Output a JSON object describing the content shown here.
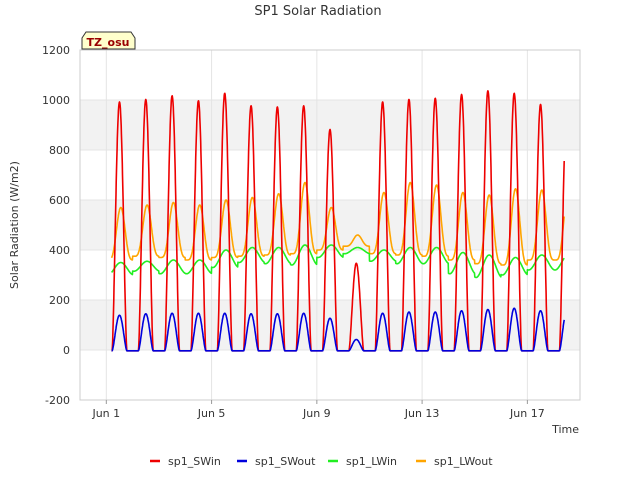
{
  "chart_data": {
    "type": "line",
    "title": "SP1 Solar Radiation",
    "xlabel": "Time",
    "ylabel": "Solar Radiation (W/m2)",
    "badge": "TZ_osu",
    "ylim": [
      -200,
      1200
    ],
    "xlim": [
      "2018-05-31",
      "2018-06-19"
    ],
    "yticks": [
      -200,
      0,
      200,
      400,
      600,
      800,
      1000,
      1200
    ],
    "xticks": [
      {
        "date": "2018-06-01",
        "label": "Jun 1"
      },
      {
        "date": "2018-06-05",
        "label": "Jun 5"
      },
      {
        "date": "2018-06-09",
        "label": "Jun 9"
      },
      {
        "date": "2018-06-13",
        "label": "Jun 13"
      },
      {
        "date": "2018-06-17",
        "label": "Jun 17"
      }
    ],
    "grid": true,
    "band_shading": true,
    "legend_position": "bottom",
    "daily": [
      {
        "date": "2018-06-01",
        "swin_peak": 995,
        "swout_peak": 142,
        "lwin_night": 300,
        "lwin_day": 350,
        "lwout_night": 360,
        "lwout_day": 570
      },
      {
        "date": "2018-06-02",
        "swin_peak": 1005,
        "swout_peak": 148,
        "lwin_night": 315,
        "lwin_day": 355,
        "lwout_night": 375,
        "lwout_day": 580
      },
      {
        "date": "2018-06-03",
        "swin_peak": 1020,
        "swout_peak": 150,
        "lwin_night": 305,
        "lwin_day": 360,
        "lwout_night": 370,
        "lwout_day": 590
      },
      {
        "date": "2018-06-04",
        "swin_peak": 1000,
        "swout_peak": 150,
        "lwin_night": 305,
        "lwin_day": 360,
        "lwout_night": 360,
        "lwout_day": 580
      },
      {
        "date": "2018-06-05",
        "swin_peak": 1030,
        "swout_peak": 150,
        "lwin_night": 330,
        "lwin_day": 400,
        "lwout_night": 370,
        "lwout_day": 600
      },
      {
        "date": "2018-06-06",
        "swin_peak": 980,
        "swout_peak": 148,
        "lwin_night": 350,
        "lwin_day": 410,
        "lwout_night": 375,
        "lwout_day": 610
      },
      {
        "date": "2018-06-07",
        "swin_peak": 975,
        "swout_peak": 148,
        "lwin_night": 345,
        "lwin_day": 410,
        "lwout_night": 380,
        "lwout_day": 625
      },
      {
        "date": "2018-06-08",
        "swin_peak": 980,
        "swout_peak": 150,
        "lwin_night": 340,
        "lwin_day": 420,
        "lwout_night": 385,
        "lwout_day": 670
      },
      {
        "date": "2018-06-09",
        "swin_peak": 885,
        "swout_peak": 130,
        "lwin_night": 370,
        "lwin_day": 420,
        "lwout_night": 400,
        "lwout_day": 570
      },
      {
        "date": "2018-06-10",
        "swin_peak": 350,
        "swout_peak": 45,
        "lwin_night": 385,
        "lwin_day": 410,
        "lwout_night": 415,
        "lwout_day": 460
      },
      {
        "date": "2018-06-11",
        "swin_peak": 995,
        "swout_peak": 150,
        "lwin_night": 355,
        "lwin_day": 400,
        "lwout_night": 385,
        "lwout_day": 630
      },
      {
        "date": "2018-06-12",
        "swin_peak": 1005,
        "swout_peak": 155,
        "lwin_night": 345,
        "lwin_day": 410,
        "lwout_night": 380,
        "lwout_day": 670
      },
      {
        "date": "2018-06-13",
        "swin_peak": 1010,
        "swout_peak": 155,
        "lwin_night": 345,
        "lwin_day": 410,
        "lwout_night": 375,
        "lwout_day": 660
      },
      {
        "date": "2018-06-14",
        "swin_peak": 1025,
        "swout_peak": 160,
        "lwin_night": 305,
        "lwin_day": 390,
        "lwout_night": 360,
        "lwout_day": 630
      },
      {
        "date": "2018-06-15",
        "swin_peak": 1040,
        "swout_peak": 165,
        "lwin_night": 290,
        "lwin_day": 380,
        "lwout_night": 345,
        "lwout_day": 620
      },
      {
        "date": "2018-06-16",
        "swin_peak": 1030,
        "swout_peak": 170,
        "lwin_night": 300,
        "lwin_day": 370,
        "lwout_night": 340,
        "lwout_day": 645
      },
      {
        "date": "2018-06-17",
        "swin_peak": 985,
        "swout_peak": 160,
        "lwin_night": 320,
        "lwin_day": 380,
        "lwout_night": 360,
        "lwout_day": 640
      }
    ],
    "series": [
      {
        "name": "sp1_SWin",
        "key": "swin",
        "color": "#ee0000"
      },
      {
        "name": "sp1_SWout",
        "key": "swout",
        "color": "#0000dd"
      },
      {
        "name": "sp1_LWin",
        "key": "lwin",
        "color": "#22ee22"
      },
      {
        "name": "sp1_LWout",
        "key": "lwout",
        "color": "#ffa500"
      }
    ]
  }
}
